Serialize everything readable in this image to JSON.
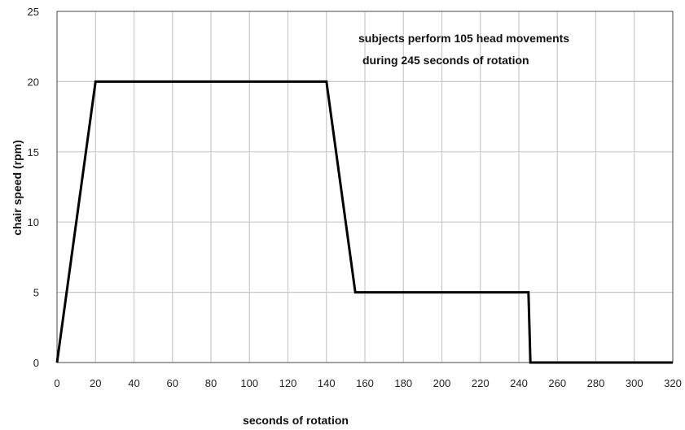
{
  "chart_data": {
    "type": "line",
    "xlabel": "seconds of rotation",
    "ylabel": "chair speed (rpm)",
    "xlim": [
      0,
      320
    ],
    "ylim": [
      0,
      25
    ],
    "xticks": [
      0,
      20,
      40,
      60,
      80,
      100,
      120,
      140,
      160,
      180,
      200,
      220,
      240,
      260,
      280,
      300,
      320
    ],
    "yticks": [
      0,
      5,
      10,
      15,
      20,
      25
    ],
    "grid": true,
    "annotation": [
      "subjects perform 105 head movements",
      "during 245 seconds of rotation"
    ],
    "series": [
      {
        "x": [
          0,
          20,
          140,
          155,
          245,
          246,
          320
        ],
        "y": [
          0,
          20,
          20,
          5,
          5,
          0,
          0
        ]
      }
    ],
    "colors": {
      "line": "#000000",
      "grid": "#c8c8c8",
      "axis": "#555555"
    }
  }
}
